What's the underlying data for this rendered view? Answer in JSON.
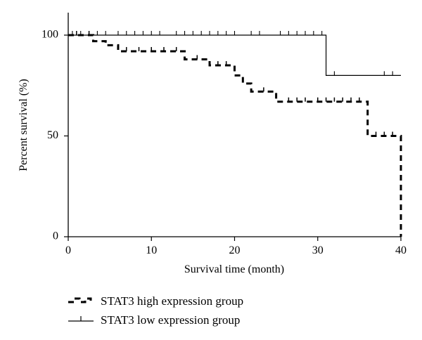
{
  "chart_data": {
    "type": "line",
    "subtype": "kaplan-meier",
    "title": "",
    "xlabel": "Survival time (month)",
    "ylabel": "Percent survival (%)",
    "xlim": [
      0,
      40
    ],
    "ylim": [
      0,
      100
    ],
    "xticks": [
      "0",
      "10",
      "20",
      "30",
      "40"
    ],
    "yticks": [
      "0",
      "50",
      "100"
    ],
    "grid": false,
    "legend_position": "bottom-left",
    "series": [
      {
        "name": "STAT3 high expression group",
        "style": "dashed",
        "color": "#000000",
        "steps": [
          [
            0,
            100
          ],
          [
            3,
            97
          ],
          [
            4.5,
            95
          ],
          [
            6,
            92
          ],
          [
            14,
            88
          ],
          [
            17,
            85
          ],
          [
            20,
            80
          ],
          [
            21,
            76
          ],
          [
            22,
            72
          ],
          [
            25,
            67
          ],
          [
            36,
            50
          ],
          [
            40,
            0
          ]
        ],
        "censored": [
          1,
          2.5,
          7,
          8.5,
          10,
          11.5,
          13,
          15.5,
          18,
          19,
          23.5,
          26.5,
          27.5,
          28.5,
          30,
          31,
          32,
          33,
          34,
          35,
          37,
          38,
          39
        ]
      },
      {
        "name": "STAT3 low expression group",
        "style": "solid",
        "color": "#000000",
        "steps": [
          [
            0,
            100
          ],
          [
            31,
            80
          ],
          [
            40,
            80
          ]
        ],
        "censored": [
          0.5,
          1.5,
          2.5,
          3.5,
          4.5,
          6,
          7,
          8,
          9,
          10,
          11,
          13,
          14,
          15,
          16,
          17,
          18,
          19,
          20,
          22,
          23,
          25.5,
          26.5,
          27.5,
          28.5,
          29.5,
          30.5,
          32,
          38,
          39
        ]
      }
    ]
  }
}
